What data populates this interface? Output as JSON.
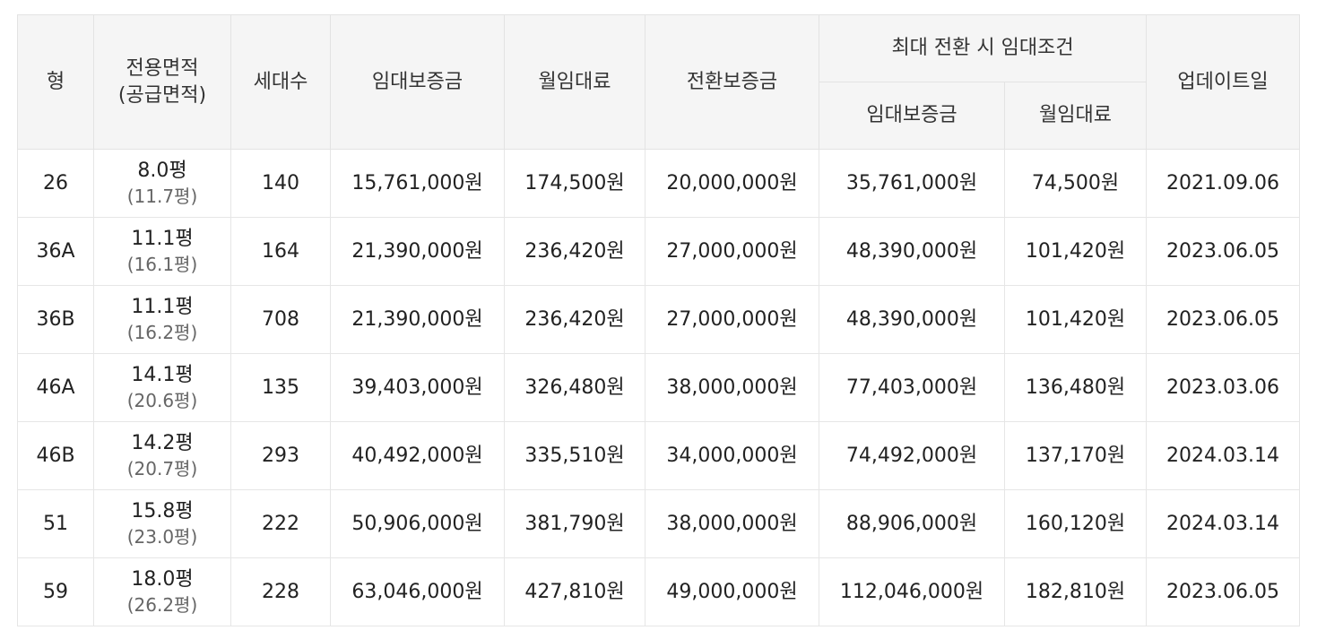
{
  "headers": {
    "type": "형",
    "area_line1": "전용면적",
    "area_line2": "(공급면적)",
    "households": "세대수",
    "deposit": "임대보증금",
    "monthly_rent": "월임대료",
    "conversion_deposit": "전환보증금",
    "max_conversion_group": "최대 전환 시 임대조건",
    "max_deposit": "임대보증금",
    "max_monthly_rent": "월임대료",
    "update_date": "업데이트일"
  },
  "rows": [
    {
      "type": "26",
      "area": "8.0평",
      "supply": "(11.7평)",
      "households": "140",
      "deposit": "15,761,000원",
      "rent": "174,500원",
      "conv": "20,000,000원",
      "max_deposit": "35,761,000원",
      "max_rent": "74,500원",
      "date": "2021.09.06"
    },
    {
      "type": "36A",
      "area": "11.1평",
      "supply": "(16.1평)",
      "households": "164",
      "deposit": "21,390,000원",
      "rent": "236,420원",
      "conv": "27,000,000원",
      "max_deposit": "48,390,000원",
      "max_rent": "101,420원",
      "date": "2023.06.05"
    },
    {
      "type": "36B",
      "area": "11.1평",
      "supply": "(16.2평)",
      "households": "708",
      "deposit": "21,390,000원",
      "rent": "236,420원",
      "conv": "27,000,000원",
      "max_deposit": "48,390,000원",
      "max_rent": "101,420원",
      "date": "2023.06.05"
    },
    {
      "type": "46A",
      "area": "14.1평",
      "supply": "(20.6평)",
      "households": "135",
      "deposit": "39,403,000원",
      "rent": "326,480원",
      "conv": "38,000,000원",
      "max_deposit": "77,403,000원",
      "max_rent": "136,480원",
      "date": "2023.03.06"
    },
    {
      "type": "46B",
      "area": "14.2평",
      "supply": "(20.7평)",
      "households": "293",
      "deposit": "40,492,000원",
      "rent": "335,510원",
      "conv": "34,000,000원",
      "max_deposit": "74,492,000원",
      "max_rent": "137,170원",
      "date": "2024.03.14"
    },
    {
      "type": "51",
      "area": "15.8평",
      "supply": "(23.0평)",
      "households": "222",
      "deposit": "50,906,000원",
      "rent": "381,790원",
      "conv": "38,000,000원",
      "max_deposit": "88,906,000원",
      "max_rent": "160,120원",
      "date": "2024.03.14"
    },
    {
      "type": "59",
      "area": "18.0평",
      "supply": "(26.2평)",
      "households": "228",
      "deposit": "63,046,000원",
      "rent": "427,810원",
      "conv": "49,000,000원",
      "max_deposit": "112,046,000원",
      "max_rent": "182,810원",
      "date": "2023.06.05"
    }
  ]
}
